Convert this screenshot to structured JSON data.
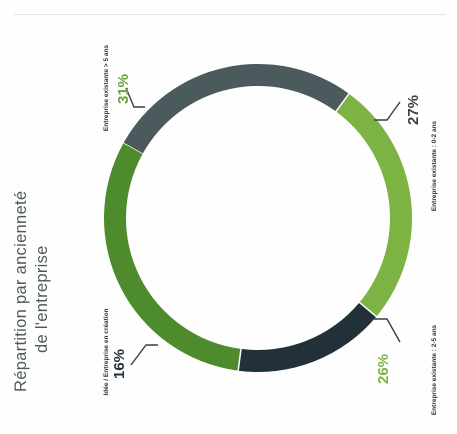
{
  "chart_data": {
    "type": "pie",
    "variant": "donut",
    "orientation": "rotated 90° counter-clockwise",
    "title_lines": [
      "Répartition par ancienneté",
      "de l'entreprise"
    ],
    "slices": [
      {
        "label": "Entreprise existante : 0-2 ans",
        "value": 27,
        "value_label": "27%",
        "color": "#4b5a5c",
        "value_color": "#3a4344"
      },
      {
        "label": "Entreprise existante : 2-5 ans",
        "value": 26,
        "value_label": "26%",
        "color": "#7cb342",
        "value_color": "#7cb342"
      },
      {
        "label": "Idée / Entreprise en création",
        "value": 16,
        "value_label": "16%",
        "color": "#22303a",
        "value_color": "#22303a"
      },
      {
        "label": "Entreprise existante > 5 ans",
        "value": 31,
        "value_label": "31%",
        "color": "#4e8b2c",
        "value_color": "#6aa33a"
      }
    ]
  }
}
